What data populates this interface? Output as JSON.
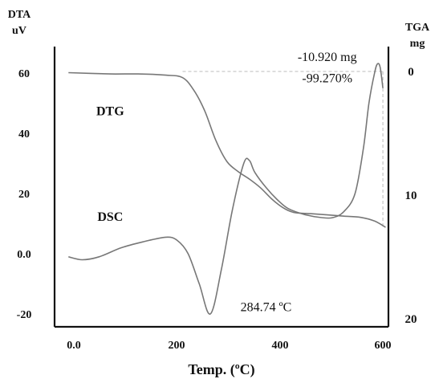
{
  "chart_data": {
    "type": "line",
    "left_axis_label": [
      "DTA",
      "uV"
    ],
    "right_axis_label": [
      "TGA",
      "mg"
    ],
    "xlabel": "Temp. (ºC)",
    "xlim": [
      0,
      600
    ],
    "ylim_left": [
      -20,
      60
    ],
    "ylim_right": [
      0,
      20
    ],
    "right_axis_inverted": true,
    "x_ticks": [
      {
        "value": 0,
        "label": "0.0"
      },
      {
        "value": 200,
        "label": "200"
      },
      {
        "value": 400,
        "label": "400"
      },
      {
        "value": 600,
        "label": "600"
      }
    ],
    "y_left_ticks": [
      {
        "value": 60,
        "label": "60"
      },
      {
        "value": 40,
        "label": "40"
      },
      {
        "value": 20,
        "label": "20"
      },
      {
        "value": 0,
        "label": "0.0"
      },
      {
        "value": -20,
        "label": "-20"
      }
    ],
    "y_right_ticks": [
      {
        "value": 0,
        "label": "0"
      },
      {
        "value": 10,
        "label": "10"
      },
      {
        "value": 20,
        "label": "20"
      }
    ],
    "series": [
      {
        "name": "DTG",
        "axis": "right",
        "color": "#777777",
        "points": [
          [
            25,
            0.1
          ],
          [
            100,
            0.2
          ],
          [
            150,
            0.2
          ],
          [
            200,
            0.3
          ],
          [
            230,
            0.5
          ],
          [
            250,
            1.5
          ],
          [
            270,
            3.2
          ],
          [
            290,
            5.6
          ],
          [
            310,
            7.3
          ],
          [
            330,
            8.1
          ],
          [
            350,
            8.7
          ],
          [
            370,
            9.4
          ],
          [
            390,
            10.3
          ],
          [
            410,
            11.0
          ],
          [
            430,
            11.4
          ],
          [
            460,
            11.5
          ],
          [
            490,
            11.6
          ],
          [
            520,
            11.7
          ],
          [
            550,
            11.8
          ],
          [
            575,
            12.1
          ],
          [
            595,
            12.6
          ]
        ]
      },
      {
        "name": "DSC",
        "axis": "left",
        "color": "#777777",
        "points": [
          [
            25,
            -1
          ],
          [
            50,
            -2
          ],
          [
            80,
            -1
          ],
          [
            120,
            2
          ],
          [
            160,
            4
          ],
          [
            200,
            5.5
          ],
          [
            220,
            4.5
          ],
          [
            240,
            0
          ],
          [
            260,
            -10
          ],
          [
            280,
            -20
          ],
          [
            300,
            -5
          ],
          [
            320,
            15
          ],
          [
            340,
            30
          ],
          [
            350,
            31
          ],
          [
            360,
            27
          ],
          [
            380,
            22
          ],
          [
            400,
            18
          ],
          [
            420,
            15
          ],
          [
            450,
            13
          ],
          [
            480,
            12
          ],
          [
            500,
            12
          ],
          [
            520,
            14
          ],
          [
            540,
            20
          ],
          [
            555,
            35
          ],
          [
            565,
            50
          ],
          [
            575,
            60
          ],
          [
            580,
            63
          ],
          [
            585,
            62
          ],
          [
            590,
            55
          ]
        ]
      }
    ],
    "reference_lines": [
      {
        "type": "horizontal",
        "axis": "right",
        "y": 0,
        "from_x": 230,
        "to_x": 590
      },
      {
        "type": "vertical",
        "x": 590,
        "from_y_right": 0,
        "to_y_right": 12.6
      }
    ],
    "annotations": [
      {
        "text": "-10.920 mg",
        "x": 490,
        "y_left": 64
      },
      {
        "text": "-99.270%",
        "x": 490,
        "y_left": 57
      },
      {
        "text": "284.74 ºC",
        "x": 380,
        "y_left": -19
      }
    ],
    "series_labels": [
      {
        "text": "DTG",
        "x": 100,
        "y_left": 46
      },
      {
        "text": "DSC",
        "x": 100,
        "y_left": 11
      }
    ]
  }
}
